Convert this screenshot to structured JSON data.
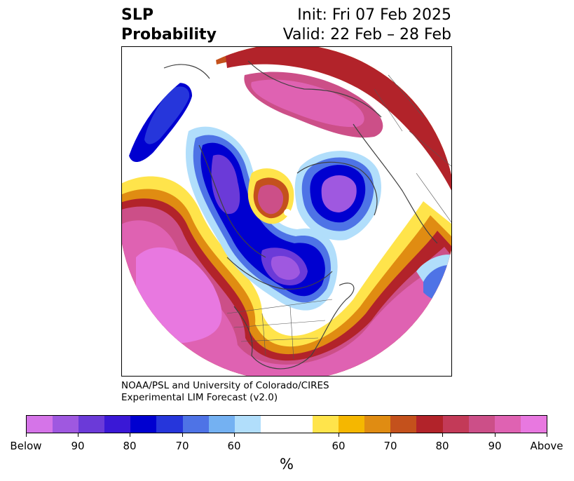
{
  "title": {
    "line1_left": "SLP",
    "line2_left": "Probability",
    "line1_right": "Init: Fri 07 Feb 2025",
    "line2_right": "Valid: 22 Feb – 28 Feb"
  },
  "credit": {
    "line1": "NOAA/PSL and University of Colorado/CIRES",
    "line2": "Experimental LIM Forecast (v2.0)"
  },
  "colorbar": {
    "unit": "%",
    "colors": [
      "#d574e8",
      "#9f58e0",
      "#6b3ad8",
      "#3a18d6",
      "#0000d0",
      "#2636db",
      "#4e73e6",
      "#74b1f2",
      "#b1defb",
      "#ffffff",
      "#ffffff",
      "#ffe44b",
      "#f5b700",
      "#e08c12",
      "#c4511c",
      "#b2232a",
      "#c33a58",
      "#cc4f88",
      "#df62b2",
      "#e878e0"
    ],
    "ticks": [
      "Below",
      "90",
      "80",
      "70",
      "60",
      "60",
      "70",
      "80",
      "90",
      "Above"
    ]
  },
  "map": {
    "projection": "north-polar-stereographic",
    "field": "sea-level-pressure-probability"
  }
}
